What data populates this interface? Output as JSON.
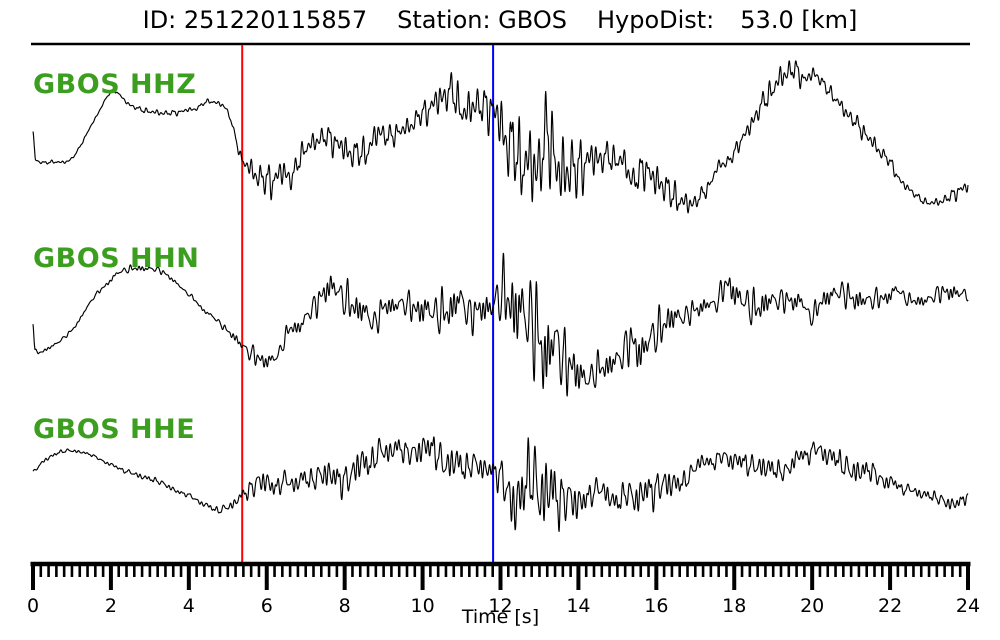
{
  "header": {
    "id": "ID: 251220115857",
    "station": "Station: GBOS",
    "hypodist_label": "HypoDist:",
    "hypodist_value": "53.0 [km]"
  },
  "colors": {
    "background": "#ffffff",
    "trace": "#000000",
    "p_pick": "#ff0000",
    "s_pick": "#0000ff",
    "channel_label": "#3c9e1e",
    "axis": "#000000"
  },
  "chart_data": {
    "type": "line",
    "title": "ID: 251220115857  Station: GBOS  HypoDist: 53.0 [km]",
    "xlabel": "Time [s]",
    "x_range": [
      0,
      24
    ],
    "x_major_step": 2,
    "x_minor_step": 0.2,
    "grid": false,
    "legend_position": "none",
    "tick_labels": [
      "0",
      "2",
      "4",
      "6",
      "8",
      "10",
      "12",
      "14",
      "16",
      "18",
      "20",
      "22",
      "24"
    ],
    "picks": [
      {
        "name": "p-pick",
        "time": 5.37,
        "color": "#ff0000"
      },
      {
        "name": "s-pick",
        "time": 11.81,
        "color": "#0000ff"
      }
    ],
    "series": [
      {
        "name": "GBOS.HHZ",
        "label": "GBOS HHZ",
        "seed": 11,
        "baseline": [
          [
            0,
            132
          ],
          [
            0.06,
            160
          ],
          [
            0.5,
            162
          ],
          [
            1.0,
            158
          ],
          [
            1.5,
            125
          ],
          [
            2.05,
            92
          ],
          [
            2.5,
            105
          ],
          [
            3.0,
            112
          ],
          [
            3.6,
            113
          ],
          [
            4.1,
            108
          ],
          [
            4.65,
            103
          ],
          [
            5.0,
            112
          ],
          [
            5.37,
            160
          ],
          [
            6.2,
            183
          ],
          [
            7.0,
            150
          ],
          [
            7.6,
            140
          ],
          [
            8.2,
            152
          ],
          [
            9.0,
            138
          ],
          [
            9.8,
            120
          ],
          [
            10.7,
            97
          ],
          [
            11.3,
            108
          ],
          [
            11.8,
            115
          ],
          [
            12.4,
            150
          ],
          [
            13.0,
            160
          ],
          [
            13.8,
            165
          ],
          [
            14.6,
            160
          ],
          [
            15.4,
            168
          ],
          [
            16.2,
            188
          ],
          [
            16.9,
            202
          ],
          [
            17.6,
            172
          ],
          [
            18.3,
            132
          ],
          [
            19.0,
            90
          ],
          [
            19.5,
            70
          ],
          [
            20.1,
            80
          ],
          [
            20.8,
            108
          ],
          [
            21.5,
            140
          ],
          [
            22.2,
            175
          ],
          [
            22.9,
            202
          ],
          [
            23.4,
            200
          ],
          [
            24,
            185
          ]
        ],
        "envelope": [
          [
            0,
            2
          ],
          [
            0.5,
            2
          ],
          [
            1.5,
            2
          ],
          [
            2.5,
            3
          ],
          [
            3.5,
            4
          ],
          [
            4.5,
            5
          ],
          [
            5.2,
            4
          ],
          [
            5.5,
            12
          ],
          [
            6.0,
            22
          ],
          [
            6.6,
            26
          ],
          [
            7.4,
            22
          ],
          [
            8.4,
            18
          ],
          [
            9.4,
            22
          ],
          [
            10.3,
            25
          ],
          [
            11.0,
            24
          ],
          [
            11.5,
            28
          ],
          [
            11.85,
            45
          ],
          [
            12.2,
            85
          ],
          [
            12.6,
            80
          ],
          [
            13.0,
            65
          ],
          [
            13.5,
            50
          ],
          [
            14.2,
            38
          ],
          [
            15.0,
            30
          ],
          [
            15.8,
            25
          ],
          [
            16.6,
            18
          ],
          [
            17.4,
            14
          ],
          [
            18.2,
            12
          ],
          [
            19.0,
            15
          ],
          [
            19.5,
            20
          ],
          [
            20.0,
            16
          ],
          [
            20.8,
            12
          ],
          [
            21.6,
            10
          ],
          [
            22.4,
            8
          ],
          [
            23.2,
            8
          ],
          [
            24,
            10
          ]
        ]
      },
      {
        "name": "GBOS.HHN",
        "label": "GBOS HHN",
        "seed": 29,
        "baseline": [
          [
            0,
            322
          ],
          [
            0.05,
            350
          ],
          [
            0.4,
            348
          ],
          [
            1.0,
            330
          ],
          [
            1.6,
            295
          ],
          [
            2.3,
            272
          ],
          [
            2.8,
            268
          ],
          [
            3.3,
            272
          ],
          [
            4.0,
            295
          ],
          [
            4.7,
            320
          ],
          [
            5.37,
            345
          ],
          [
            6.05,
            360
          ],
          [
            6.7,
            330
          ],
          [
            7.6,
            290
          ],
          [
            8.3,
            310
          ],
          [
            9.0,
            312
          ],
          [
            9.7,
            305
          ],
          [
            10.4,
            312
          ],
          [
            11.1,
            308
          ],
          [
            11.8,
            305
          ],
          [
            12.4,
            310
          ],
          [
            13.0,
            330
          ],
          [
            13.6,
            365
          ],
          [
            14.3,
            372
          ],
          [
            15.0,
            360
          ],
          [
            15.7,
            340
          ],
          [
            16.4,
            322
          ],
          [
            17.1,
            308
          ],
          [
            17.8,
            293
          ],
          [
            18.5,
            305
          ],
          [
            19.2,
            300
          ],
          [
            19.9,
            308
          ],
          [
            20.6,
            295
          ],
          [
            21.3,
            300
          ],
          [
            22.0,
            295
          ],
          [
            22.7,
            300
          ],
          [
            23.4,
            293
          ],
          [
            24,
            295
          ]
        ],
        "envelope": [
          [
            0,
            2
          ],
          [
            1,
            3
          ],
          [
            2,
            4
          ],
          [
            3,
            4
          ],
          [
            4,
            4
          ],
          [
            5,
            4
          ],
          [
            5.5,
            10
          ],
          [
            6.1,
            14
          ],
          [
            6.8,
            18
          ],
          [
            7.6,
            20
          ],
          [
            8.4,
            22
          ],
          [
            9.2,
            25
          ],
          [
            10.0,
            25
          ],
          [
            10.8,
            25
          ],
          [
            11.5,
            28
          ],
          [
            11.95,
            60
          ],
          [
            12.3,
            75
          ],
          [
            12.7,
            65
          ],
          [
            13.1,
            55
          ],
          [
            13.6,
            42
          ],
          [
            14.3,
            35
          ],
          [
            15.0,
            30
          ],
          [
            15.8,
            26
          ],
          [
            16.6,
            22
          ],
          [
            17.4,
            20
          ],
          [
            18.2,
            22
          ],
          [
            19.0,
            18
          ],
          [
            19.8,
            22
          ],
          [
            20.6,
            16
          ],
          [
            21.4,
            14
          ],
          [
            22.2,
            14
          ],
          [
            23.0,
            12
          ],
          [
            24,
            10
          ]
        ]
      },
      {
        "name": "GBOS.HHE",
        "label": "GBOS HHE",
        "seed": 47,
        "baseline": [
          [
            0,
            472
          ],
          [
            0.3,
            460
          ],
          [
            0.9,
            450
          ],
          [
            1.5,
            456
          ],
          [
            2.2,
            468
          ],
          [
            2.9,
            478
          ],
          [
            3.6,
            488
          ],
          [
            4.2,
            500
          ],
          [
            4.7,
            510
          ],
          [
            5.1,
            505
          ],
          [
            5.4,
            492
          ],
          [
            6.0,
            485
          ],
          [
            6.8,
            480
          ],
          [
            7.6,
            478
          ],
          [
            8.4,
            468
          ],
          [
            9.3,
            448
          ],
          [
            10.0,
            452
          ],
          [
            10.8,
            462
          ],
          [
            11.5,
            468
          ],
          [
            12.0,
            480
          ],
          [
            12.7,
            490
          ],
          [
            13.4,
            495
          ],
          [
            14.1,
            498
          ],
          [
            14.9,
            495
          ],
          [
            15.6,
            495
          ],
          [
            16.3,
            485
          ],
          [
            17.0,
            470
          ],
          [
            17.7,
            458
          ],
          [
            18.3,
            462
          ],
          [
            18.9,
            472
          ],
          [
            19.5,
            462
          ],
          [
            20.0,
            452
          ],
          [
            20.6,
            460
          ],
          [
            21.3,
            472
          ],
          [
            22.0,
            482
          ],
          [
            22.7,
            492
          ],
          [
            23.4,
            502
          ],
          [
            24,
            498
          ]
        ],
        "envelope": [
          [
            0,
            2
          ],
          [
            0.8,
            3
          ],
          [
            1.6,
            3
          ],
          [
            2.4,
            3
          ],
          [
            3.2,
            4
          ],
          [
            4.0,
            5
          ],
          [
            4.8,
            6
          ],
          [
            5.35,
            6
          ],
          [
            5.7,
            16
          ],
          [
            6.4,
            20
          ],
          [
            7.2,
            22
          ],
          [
            8.0,
            20
          ],
          [
            8.8,
            24
          ],
          [
            9.6,
            26
          ],
          [
            10.4,
            22
          ],
          [
            11.2,
            20
          ],
          [
            11.8,
            24
          ],
          [
            12.1,
            55
          ],
          [
            12.5,
            62
          ],
          [
            13.0,
            50
          ],
          [
            13.7,
            32
          ],
          [
            14.4,
            26
          ],
          [
            15.2,
            24
          ],
          [
            16.0,
            22
          ],
          [
            16.8,
            18
          ],
          [
            17.6,
            16
          ],
          [
            18.4,
            14
          ],
          [
            19.2,
            16
          ],
          [
            19.9,
            20
          ],
          [
            20.6,
            18
          ],
          [
            21.4,
            14
          ],
          [
            22.2,
            12
          ],
          [
            23.0,
            10
          ],
          [
            24,
            8
          ]
        ]
      }
    ]
  }
}
